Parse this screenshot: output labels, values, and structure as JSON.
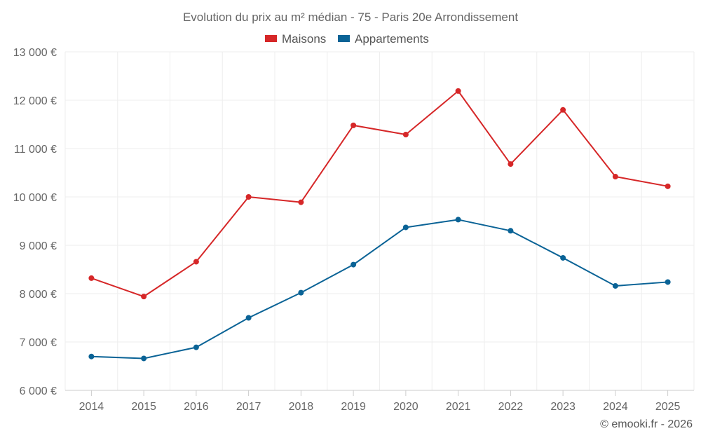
{
  "chart_data": {
    "type": "line",
    "title": "Evolution du prix au m² médian - 75 - Paris 20e Arrondissement",
    "categories": [
      "2014",
      "2015",
      "2016",
      "2017",
      "2018",
      "2019",
      "2020",
      "2021",
      "2022",
      "2023",
      "2024",
      "2025"
    ],
    "series": [
      {
        "name": "Maisons",
        "color": "#d62728",
        "values": [
          8320,
          7940,
          8660,
          10000,
          9890,
          11480,
          11290,
          12190,
          10680,
          11800,
          10420,
          10220
        ]
      },
      {
        "name": "Appartements",
        "color": "#0a6396",
        "values": [
          6700,
          6660,
          6890,
          7500,
          8020,
          8600,
          9370,
          9530,
          9300,
          8740,
          8160,
          8240
        ]
      }
    ],
    "ylim": [
      6000,
      13000
    ],
    "yticks": [
      6000,
      7000,
      8000,
      9000,
      10000,
      11000,
      12000,
      13000
    ],
    "ytick_labels": [
      "6 000 €",
      "7 000 €",
      "8 000 €",
      "9 000 €",
      "10 000 €",
      "11 000 €",
      "12 000 €",
      "13 000 €"
    ],
    "xlabel": "",
    "ylabel": "",
    "grid": true,
    "legend_position": "top-center"
  },
  "credit": "© emooki.fr - 2026"
}
